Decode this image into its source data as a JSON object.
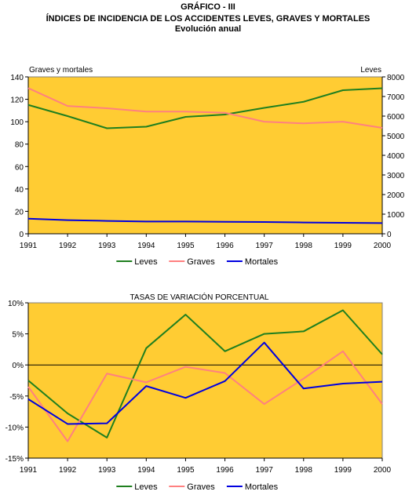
{
  "header": {
    "label": "GRÁFICO - III",
    "title": "ÍNDICES DE INCIDENCIA DE LOS ACCIDENTES LEVES, GRAVES Y MORTALES",
    "subtitle": "Evolución anual"
  },
  "colors": {
    "plot_bg": "#FFCC33",
    "leves": "#1F7F1F",
    "graves": "#FF8080",
    "mortales": "#0000E0",
    "axis": "#000000"
  },
  "chart_data": [
    {
      "type": "line",
      "x": [
        "1991",
        "1992",
        "1993",
        "1994",
        "1995",
        "1996",
        "1997",
        "1998",
        "1999",
        "2000"
      ],
      "ylabel_left": "Graves y mortales",
      "ylabel_right": "Leves",
      "ylim_left": [
        0,
        140
      ],
      "ylim_right": [
        0,
        8000
      ],
      "yticks_left": [
        "0",
        "20",
        "40",
        "60",
        "80",
        "100",
        "120",
        "140"
      ],
      "yticks_right": [
        "0",
        "1000",
        "2000",
        "3000",
        "4000",
        "5000",
        "6000",
        "7000",
        "8000"
      ],
      "grid": false,
      "legend_position": "bottom",
      "series": [
        {
          "name": "Leves",
          "axis": "right",
          "values": [
            6570,
            6000,
            5380,
            5460,
            5960,
            6080,
            6420,
            6730,
            7320,
            7420
          ]
        },
        {
          "name": "Graves",
          "axis": "left",
          "values": [
            130,
            114,
            112,
            109,
            109,
            108,
            100,
            98.5,
            100,
            94.5
          ]
        },
        {
          "name": "Mortales",
          "axis": "left",
          "values": [
            13.5,
            12.2,
            11.5,
            10.9,
            10.9,
            10.7,
            10.5,
            10.1,
            9.8,
            9.5
          ]
        }
      ]
    },
    {
      "type": "line",
      "title": "TASAS DE VARIACIÓN PORCENTUAL",
      "x": [
        "1991",
        "1992",
        "1993",
        "1994",
        "1995",
        "1996",
        "1997",
        "1998",
        "1999",
        "2000"
      ],
      "ylim": [
        -15,
        10
      ],
      "yticks": [
        "-15%",
        "-10%",
        "-5%",
        "0%",
        "5%",
        "10%"
      ],
      "grid": false,
      "legend_position": "bottom",
      "series": [
        {
          "name": "Leves",
          "values": [
            -2.5,
            -7.8,
            -11.7,
            2.7,
            8.1,
            2.2,
            5.0,
            5.4,
            8.8,
            1.7
          ]
        },
        {
          "name": "Graves",
          "values": [
            -3.5,
            -12.3,
            -1.4,
            -2.8,
            -0.3,
            -1.3,
            -6.3,
            -2.2,
            2.2,
            -6.3
          ]
        },
        {
          "name": "Mortales",
          "values": [
            -5.5,
            -9.5,
            -9.4,
            -3.4,
            -5.3,
            -2.6,
            3.6,
            -3.8,
            -3.0,
            -2.7
          ]
        }
      ]
    }
  ]
}
